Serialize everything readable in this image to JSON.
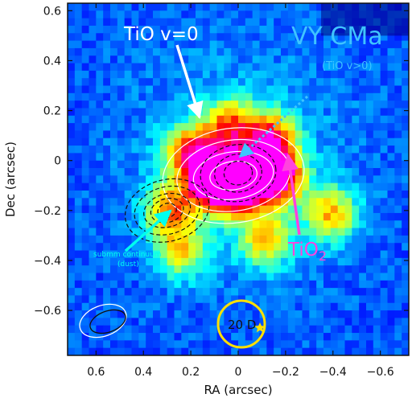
{
  "chart_data": {
    "type": "heatmap",
    "title": "VY CMa",
    "xlabel": "RA (arcsec)",
    "ylabel": "Dec (arcsec)",
    "xlim": [
      0.72,
      -0.72
    ],
    "ylim": [
      -0.78,
      0.63
    ],
    "x_ticks": [
      0.6,
      0.4,
      0.2,
      0,
      -0.2,
      -0.4,
      -0.6
    ],
    "x_tick_labels": [
      "0.6",
      "0.4",
      "0.2",
      "0",
      "−0.2",
      "−0.4",
      "−0.6"
    ],
    "y_ticks": [
      0.6,
      0.4,
      0.2,
      0,
      -0.2,
      -0.4,
      -0.6
    ],
    "y_tick_labels": [
      "0.6",
      "0.4",
      "0.2",
      "0",
      "−0.2",
      "−0.4",
      "−0.6"
    ],
    "grid": false,
    "colormap": [
      "#00007f",
      "#0000ff",
      "#0080ff",
      "#00ffff",
      "#80ff80",
      "#ffff00",
      "#ff8000",
      "#ff0000",
      "#ff00ff"
    ],
    "emission_peaks": [
      {
        "x": 0.02,
        "y": -0.08,
        "level": 1.0
      },
      {
        "x": 0.12,
        "y": -0.06,
        "level": 0.92
      },
      {
        "x": -0.15,
        "y": -0.05,
        "level": 0.82
      },
      {
        "x": -0.12,
        "y": 0.1,
        "level": 0.6
      },
      {
        "x": 0.22,
        "y": 0.05,
        "level": 0.55
      },
      {
        "x": 0.05,
        "y": 0.15,
        "level": 0.5
      },
      {
        "x": 0.3,
        "y": -0.18,
        "level": 0.5
      },
      {
        "x": -0.38,
        "y": -0.2,
        "level": 0.45
      },
      {
        "x": -0.1,
        "y": -0.3,
        "level": 0.42
      },
      {
        "x": 0.25,
        "y": -0.35,
        "level": 0.38
      }
    ],
    "contours": [
      {
        "name": "TiO v=0",
        "color": "#ffffff",
        "style": "solid",
        "center": [
          0.02,
          -0.06
        ],
        "semi_axes": [
          [
            0.1,
            0.06
          ],
          [
            0.17,
            0.1
          ],
          [
            0.24,
            0.15
          ],
          [
            0.3,
            0.2
          ]
        ]
      },
      {
        "name": "TiO v>0",
        "color": "#111111",
        "style": "dashed",
        "center": [
          0.0,
          -0.05
        ],
        "semi_axes": [
          [
            0.06,
            0.05
          ],
          [
            0.1,
            0.08
          ],
          [
            0.16,
            0.12
          ]
        ]
      },
      {
        "name": "submm continuum (dust)",
        "color": "#111111",
        "style": "dashed",
        "center": [
          0.3,
          -0.2
        ],
        "semi_axes": [
          [
            0.04,
            0.03
          ],
          [
            0.07,
            0.05
          ],
          [
            0.1,
            0.07
          ],
          [
            0.14,
            0.1
          ],
          [
            0.18,
            0.13
          ]
        ]
      }
    ],
    "annotations": [
      {
        "text": "TiO v=0",
        "color": "#ffffff",
        "size": "large"
      },
      {
        "text": "VY CMa",
        "color": "#3fc4ff",
        "size": "xlarge"
      },
      {
        "text": "(TiO v>0)",
        "color": "#3fc4ff",
        "size": "small"
      },
      {
        "text": "submm continuum",
        "color": "#00ffee",
        "size": "tiny"
      },
      {
        "text": "(dust)",
        "color": "#00ffee",
        "size": "tiny"
      },
      {
        "text": "TiO",
        "subscript": "2",
        "color": "#ff44dd",
        "size": "large"
      },
      {
        "text": "20 D",
        "color": "#111111",
        "size": "small"
      }
    ],
    "scale_marker": {
      "label": "20 D",
      "center": [
        -0.02,
        -0.66
      ],
      "radius": 0.085,
      "color": "#ffe000"
    }
  }
}
